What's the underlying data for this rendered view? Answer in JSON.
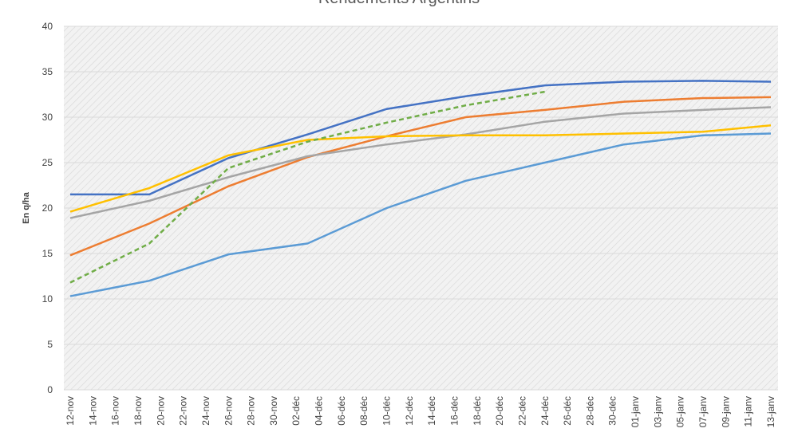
{
  "chart_data": {
    "type": "line",
    "title": "Rendements Argentins",
    "y_label": "En q/ha",
    "categories": [
      "12-nov",
      "14-nov",
      "16-nov",
      "18-nov",
      "20-nov",
      "22-nov",
      "24-nov",
      "26-nov",
      "28-nov",
      "30-nov",
      "02-déc",
      "04-déc",
      "06-déc",
      "08-déc",
      "10-déc",
      "12-déc",
      "14-déc",
      "16-déc",
      "18-déc",
      "20-déc",
      "22-déc",
      "24-déc",
      "26-déc",
      "28-déc",
      "30-déc",
      "01-janv",
      "03-janv",
      "05-janv",
      "07-janv",
      "09-janv",
      "11-janv",
      "13-janv"
    ],
    "x": [
      "12-nov",
      "19-nov",
      "26-nov",
      "03-déc",
      "10-déc",
      "17-déc",
      "24-déc",
      "31-déc",
      "07-janv",
      "13-janv"
    ],
    "series": [
      {
        "color": "#4472c4",
        "dash": false,
        "values": [
          21.5,
          21.5,
          25.5,
          28.1,
          30.9,
          32.3,
          33.5,
          33.9,
          34.0,
          33.9
        ]
      },
      {
        "color": "#ed7d31",
        "dash": false,
        "values": [
          14.8,
          18.3,
          22.4,
          25.6,
          27.9,
          30.0,
          30.8,
          31.7,
          32.1,
          32.2
        ]
      },
      {
        "color": "#a5a5a5",
        "dash": false,
        "values": [
          18.9,
          20.8,
          23.4,
          25.7,
          27.0,
          28.1,
          29.5,
          30.4,
          30.8,
          31.1
        ]
      },
      {
        "color": "#ffc000",
        "dash": false,
        "values": [
          19.6,
          22.2,
          25.8,
          27.5,
          27.9,
          28.0,
          28.0,
          28.2,
          28.4,
          29.1
        ]
      },
      {
        "color": "#5b9bd5",
        "dash": false,
        "values": [
          10.3,
          12.0,
          14.9,
          16.1,
          20.0,
          23.0,
          25.0,
          27.0,
          28.0,
          28.2
        ]
      },
      {
        "color": "#70ad47",
        "dash": true,
        "values": [
          11.8,
          16.1,
          24.4,
          27.3,
          29.4,
          31.3,
          32.8,
          null,
          null,
          null
        ]
      }
    ],
    "ylim": [
      0,
      40
    ],
    "yticks": [
      0,
      5,
      10,
      15,
      20,
      25,
      30,
      35,
      40
    ],
    "grid": true
  }
}
